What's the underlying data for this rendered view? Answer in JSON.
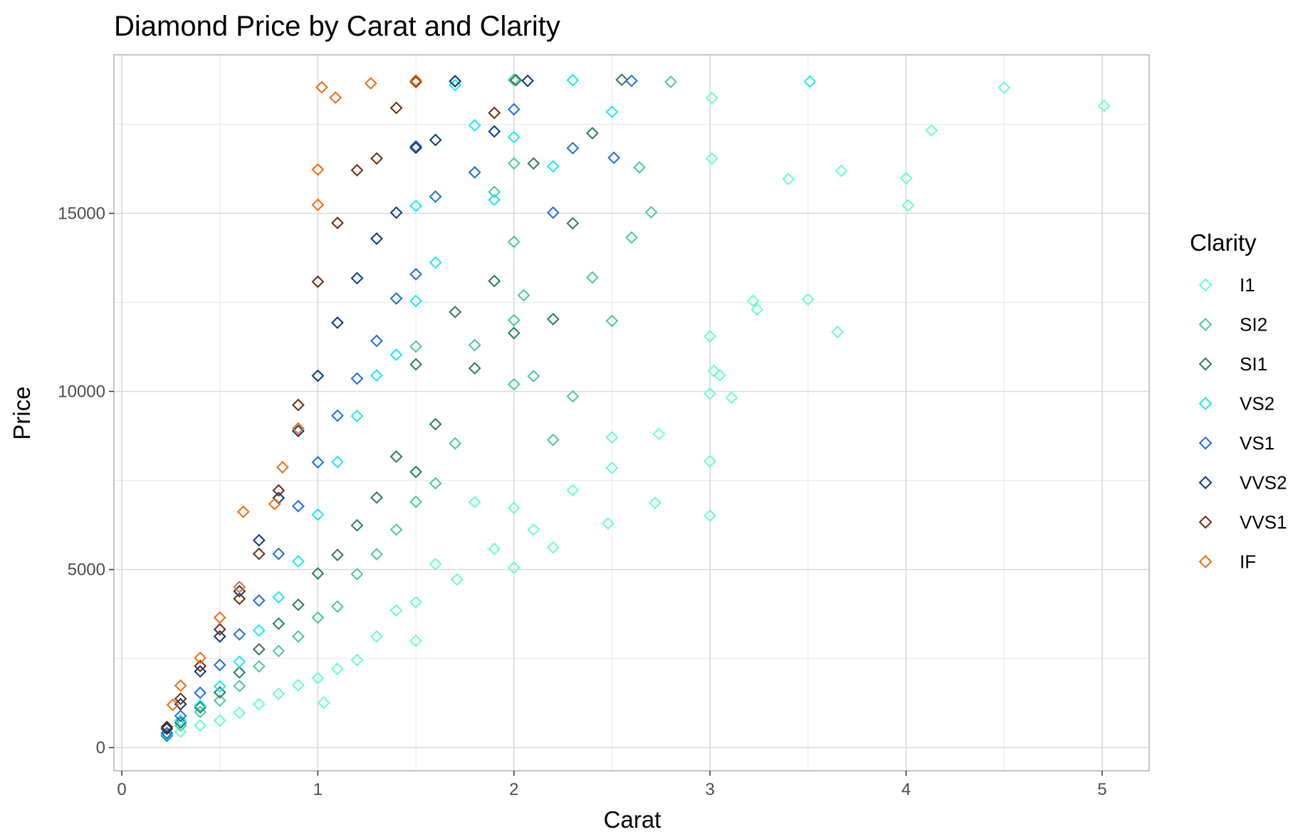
{
  "chart_data": {
    "type": "scatter",
    "title": "Diamond Price by Carat and Clarity",
    "xlabel": "Carat",
    "ylabel": "Price",
    "xlim": [
      -0.04,
      5.24
    ],
    "ylim": [
      -650,
      19450
    ],
    "x_ticks": [
      0,
      1,
      2,
      3,
      4,
      5
    ],
    "x_tick_labels": [
      "0",
      "1",
      "2",
      "3",
      "4",
      "5"
    ],
    "y_ticks": [
      0,
      5000,
      10000,
      15000
    ],
    "y_tick_labels": [
      "0",
      "5000",
      "10000",
      "15000"
    ],
    "x_minor_ticks": [
      0.5,
      1.5,
      2.5,
      3.5,
      4.5
    ],
    "y_minor_ticks": [
      2500,
      7500,
      12500,
      17500
    ],
    "grid": true,
    "marker": "open-diamond",
    "legend": {
      "title": "Clarity",
      "position": "right"
    },
    "series": [
      {
        "name": "I1",
        "color": "#66FFCC",
        "points": [
          [
            5.01,
            18018
          ],
          [
            4.5,
            18531
          ],
          [
            4.13,
            17329
          ],
          [
            4.01,
            15223
          ],
          [
            4.0,
            15984
          ],
          [
            3.67,
            16193
          ],
          [
            3.65,
            11668
          ],
          [
            3.5,
            12587
          ],
          [
            3.4,
            15964
          ],
          [
            3.24,
            12300
          ],
          [
            3.22,
            12545
          ],
          [
            3.11,
            9823
          ],
          [
            3.05,
            10453
          ],
          [
            3.02,
            10577
          ],
          [
            3.01,
            18242
          ],
          [
            3.01,
            16538
          ],
          [
            3.0,
            11548
          ],
          [
            3.0,
            9939
          ],
          [
            3.0,
            8040
          ],
          [
            3.0,
            6512
          ],
          [
            2.74,
            8807
          ],
          [
            2.72,
            6870
          ],
          [
            2.5,
            7854
          ],
          [
            2.5,
            8712
          ],
          [
            2.48,
            6296
          ],
          [
            2.3,
            7226
          ],
          [
            2.2,
            5620
          ],
          [
            2.1,
            6120
          ],
          [
            2.0,
            5051
          ],
          [
            2.0,
            6730
          ],
          [
            1.9,
            5580
          ],
          [
            1.8,
            6890
          ],
          [
            1.71,
            4720
          ],
          [
            1.6,
            5150
          ],
          [
            1.5,
            2999
          ],
          [
            1.5,
            4080
          ],
          [
            1.4,
            3850
          ],
          [
            1.3,
            3120
          ],
          [
            1.2,
            2460
          ],
          [
            1.1,
            2210
          ],
          [
            1.03,
            1262
          ],
          [
            1.0,
            1950
          ],
          [
            0.9,
            1750
          ],
          [
            0.8,
            1510
          ],
          [
            0.7,
            1220
          ],
          [
            0.6,
            980
          ],
          [
            0.5,
            760
          ],
          [
            0.4,
            620
          ],
          [
            0.3,
            450
          ]
        ]
      },
      {
        "name": "SI2",
        "color": "#4DC99A",
        "points": [
          [
            2.8,
            18692
          ],
          [
            2.7,
            15030
          ],
          [
            2.64,
            16290
          ],
          [
            2.6,
            14320
          ],
          [
            2.5,
            11980
          ],
          [
            2.4,
            13200
          ],
          [
            2.3,
            9860
          ],
          [
            2.2,
            8640
          ],
          [
            2.1,
            10430
          ],
          [
            2.05,
            12700
          ],
          [
            2.0,
            18750
          ],
          [
            2.0,
            16400
          ],
          [
            2.0,
            14200
          ],
          [
            2.0,
            12000
          ],
          [
            2.0,
            10200
          ],
          [
            1.9,
            15600
          ],
          [
            1.8,
            11300
          ],
          [
            1.7,
            8540
          ],
          [
            1.6,
            7420
          ],
          [
            1.5,
            6900
          ],
          [
            1.5,
            11260
          ],
          [
            1.4,
            6120
          ],
          [
            1.3,
            5430
          ],
          [
            1.2,
            4870
          ],
          [
            1.1,
            3960
          ],
          [
            1.0,
            3650
          ],
          [
            0.9,
            3120
          ],
          [
            0.8,
            2710
          ],
          [
            0.7,
            2280
          ],
          [
            0.6,
            1730
          ],
          [
            0.5,
            1320
          ],
          [
            0.4,
            1000
          ],
          [
            0.3,
            620
          ],
          [
            0.23,
            326
          ]
        ]
      },
      {
        "name": "SI1",
        "color": "#2E7D60",
        "points": [
          [
            2.55,
            18750
          ],
          [
            2.4,
            17250
          ],
          [
            2.3,
            14720
          ],
          [
            2.2,
            12030
          ],
          [
            2.1,
            16400
          ],
          [
            2.01,
            18740
          ],
          [
            2.0,
            11640
          ],
          [
            1.9,
            13100
          ],
          [
            1.8,
            10650
          ],
          [
            1.7,
            12230
          ],
          [
            1.6,
            9080
          ],
          [
            1.5,
            10760
          ],
          [
            1.5,
            7740
          ],
          [
            1.4,
            8170
          ],
          [
            1.3,
            7020
          ],
          [
            1.2,
            6240
          ],
          [
            1.1,
            5410
          ],
          [
            1.0,
            4890
          ],
          [
            0.9,
            4010
          ],
          [
            0.8,
            3480
          ],
          [
            0.7,
            2760
          ],
          [
            0.6,
            2110
          ],
          [
            0.5,
            1550
          ],
          [
            0.4,
            1130
          ],
          [
            0.3,
            700
          ],
          [
            0.23,
            345
          ]
        ]
      },
      {
        "name": "VS2",
        "color": "#1DE9F0",
        "points": [
          [
            3.51,
            18701
          ],
          [
            2.5,
            17850
          ],
          [
            2.3,
            18740
          ],
          [
            2.2,
            16320
          ],
          [
            2.0,
            17140
          ],
          [
            1.9,
            15380
          ],
          [
            1.8,
            17470
          ],
          [
            1.7,
            18600
          ],
          [
            1.6,
            13620
          ],
          [
            1.5,
            15210
          ],
          [
            1.5,
            12540
          ],
          [
            1.4,
            11030
          ],
          [
            1.3,
            10450
          ],
          [
            1.2,
            9310
          ],
          [
            1.1,
            8020
          ],
          [
            1.0,
            6540
          ],
          [
            0.9,
            5230
          ],
          [
            0.8,
            4220
          ],
          [
            0.7,
            3290
          ],
          [
            0.6,
            2410
          ],
          [
            0.5,
            1720
          ],
          [
            0.4,
            1180
          ],
          [
            0.3,
            760
          ],
          [
            0.23,
            380
          ]
        ]
      },
      {
        "name": "VS1",
        "color": "#1F6FE0",
        "points": [
          [
            2.6,
            18720
          ],
          [
            2.51,
            16560
          ],
          [
            2.3,
            16830
          ],
          [
            2.2,
            15020
          ],
          [
            2.0,
            17920
          ],
          [
            1.8,
            16150
          ],
          [
            1.7,
            18710
          ],
          [
            1.6,
            15470
          ],
          [
            1.5,
            16880
          ],
          [
            1.5,
            13290
          ],
          [
            1.4,
            12610
          ],
          [
            1.3,
            11420
          ],
          [
            1.2,
            10360
          ],
          [
            1.1,
            9320
          ],
          [
            1.0,
            8010
          ],
          [
            0.9,
            6780
          ],
          [
            0.8,
            5440
          ],
          [
            0.7,
            4130
          ],
          [
            0.6,
            3180
          ],
          [
            0.5,
            2320
          ],
          [
            0.4,
            1540
          ],
          [
            0.3,
            890
          ],
          [
            0.23,
            410
          ]
        ]
      },
      {
        "name": "VVS2",
        "color": "#0E3A80",
        "points": [
          [
            2.07,
            18720
          ],
          [
            1.9,
            17300
          ],
          [
            1.7,
            18710
          ],
          [
            1.6,
            17060
          ],
          [
            1.5,
            16840
          ],
          [
            1.4,
            15020
          ],
          [
            1.3,
            14290
          ],
          [
            1.2,
            13180
          ],
          [
            1.1,
            11930
          ],
          [
            1.0,
            10440
          ],
          [
            0.9,
            8890
          ],
          [
            0.8,
            7010
          ],
          [
            0.7,
            5820
          ],
          [
            0.6,
            4390
          ],
          [
            0.5,
            3120
          ],
          [
            0.4,
            2140
          ],
          [
            0.3,
            1220
          ],
          [
            0.23,
            530
          ]
        ]
      },
      {
        "name": "VVS1",
        "color": "#6B2F0E",
        "points": [
          [
            1.9,
            17820
          ],
          [
            1.5,
            18690
          ],
          [
            1.4,
            17960
          ],
          [
            1.3,
            16540
          ],
          [
            1.2,
            16210
          ],
          [
            1.1,
            14730
          ],
          [
            1.0,
            13080
          ],
          [
            0.9,
            9620
          ],
          [
            0.8,
            7220
          ],
          [
            0.7,
            5440
          ],
          [
            0.6,
            4180
          ],
          [
            0.5,
            3320
          ],
          [
            0.4,
            2290
          ],
          [
            0.3,
            1370
          ],
          [
            0.23,
            580
          ]
        ]
      },
      {
        "name": "IF",
        "color": "#F26B0F",
        "points": [
          [
            1.5,
            18731
          ],
          [
            1.27,
            18650
          ],
          [
            1.09,
            18250
          ],
          [
            1.02,
            18540
          ],
          [
            1.0,
            16230
          ],
          [
            1.0,
            15240
          ],
          [
            0.9,
            8960
          ],
          [
            0.82,
            7870
          ],
          [
            0.78,
            6840
          ],
          [
            0.62,
            6620
          ],
          [
            0.6,
            4510
          ],
          [
            0.5,
            3650
          ],
          [
            0.4,
            2520
          ],
          [
            0.3,
            1740
          ],
          [
            0.26,
            1200
          ]
        ]
      }
    ]
  }
}
